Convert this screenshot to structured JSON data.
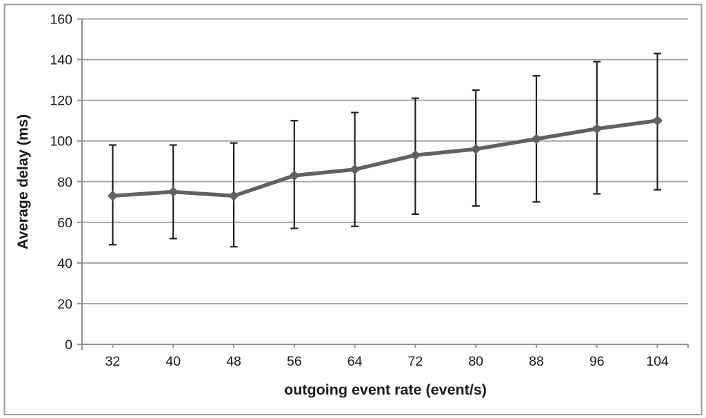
{
  "chart_data": {
    "type": "line",
    "title": "",
    "xlabel": "outgoing event rate (event/s)",
    "ylabel": "Average delay (ms)",
    "categories": [
      32,
      40,
      48,
      56,
      64,
      72,
      80,
      88,
      96,
      104
    ],
    "series": [
      {
        "name": "Average delay",
        "values": [
          73,
          75,
          73,
          83,
          86,
          93,
          96,
          101,
          106,
          110
        ],
        "error_upper": [
          98,
          98,
          99,
          110,
          114,
          121,
          125,
          132,
          139,
          143
        ],
        "error_lower": [
          49,
          52,
          48,
          57,
          58,
          64,
          68,
          70,
          74,
          76
        ]
      }
    ],
    "ylim": [
      0,
      160
    ],
    "ytick_step": 20,
    "yticks": [
      0,
      20,
      40,
      60,
      80,
      100,
      120,
      140,
      160
    ],
    "grid": "horizontal",
    "legend": "none",
    "marker": "diamond",
    "colors": {
      "line": "#616161",
      "marker": "#616161",
      "error_bar": "#1f1f1f",
      "gridline": "#a6a6a6",
      "axis": "#8f8f8f",
      "text": "#1a1a1a",
      "border": "#9b9b9b",
      "background": "#ffffff"
    }
  }
}
